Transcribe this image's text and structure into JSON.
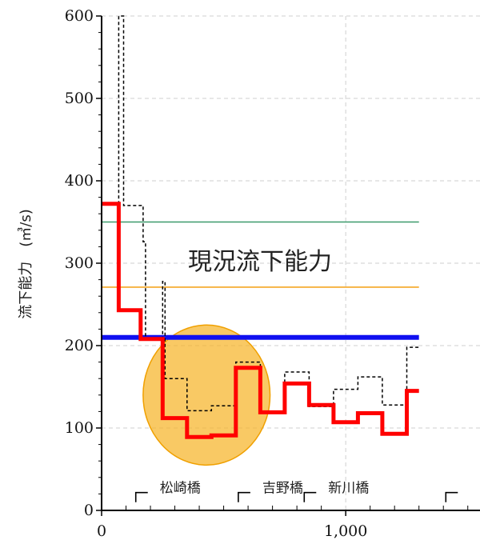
{
  "chart_data": {
    "type": "line",
    "title": "",
    "xlabel": "",
    "ylabel": "流下能力　(㎥/s)",
    "xlim": [
      0,
      1550
    ],
    "ylim": [
      0,
      600
    ],
    "x_ticks": [
      0,
      1000
    ],
    "x_tick_labels": [
      "0",
      "1,000"
    ],
    "y_ticks": [
      0,
      100,
      200,
      300,
      400,
      500,
      600
    ],
    "grid": true,
    "annotation": "現況流下能力",
    "bridges": [
      {
        "label": "松崎橋",
        "x": 140
      },
      {
        "label": "吉野橋",
        "x": 560
      },
      {
        "label": "新川橋",
        "x": 830
      }
    ],
    "extra_bridge_mark_x": 1410,
    "highlight_circle": {
      "cx": 430,
      "cy": 140,
      "rx": 260,
      "ry": 85
    },
    "series": [
      {
        "color": "#ff0000",
        "style": "thick-step",
        "x": [
          0,
          70,
          70,
          160,
          160,
          250,
          250,
          350,
          350,
          450,
          450,
          550,
          550,
          650,
          650,
          750,
          750,
          850,
          850,
          950,
          950,
          1050,
          1050,
          1150,
          1150,
          1250,
          1250,
          1300
        ],
        "y": [
          372,
          372,
          243,
          243,
          208,
          208,
          112,
          112,
          89,
          89,
          91,
          91,
          173,
          173,
          119,
          119,
          154,
          154,
          128,
          128,
          107,
          107,
          118,
          118,
          93,
          93,
          145,
          145
        ]
      },
      {
        "color": "#000000",
        "style": "dashed-step",
        "x": [
          0,
          70,
          70,
          90,
          90,
          170,
          170,
          180,
          180,
          250,
          250,
          260,
          260,
          350,
          350,
          450,
          450,
          550,
          550,
          650,
          650,
          750,
          750,
          850,
          850,
          950,
          950,
          1050,
          1050,
          1150,
          1150,
          1250,
          1250,
          1300
        ],
        "y": [
          372,
          372,
          600,
          600,
          370,
          370,
          326,
          326,
          208,
          208,
          278,
          278,
          160,
          160,
          121,
          121,
          127,
          127,
          180,
          180,
          120,
          120,
          168,
          168,
          126,
          126,
          147,
          147,
          162,
          162,
          128,
          128,
          198,
          198
        ]
      },
      {
        "color": "#3b9a6b",
        "style": "hline",
        "x": [
          0,
          1300
        ],
        "y": [
          350,
          350
        ]
      },
      {
        "color": "#f5a623",
        "style": "hline",
        "x": [
          0,
          1300
        ],
        "y": [
          271,
          271
        ]
      },
      {
        "color": "#1010f0",
        "style": "thick-hline",
        "x": [
          0,
          1300
        ],
        "y": [
          210,
          210
        ]
      }
    ]
  }
}
